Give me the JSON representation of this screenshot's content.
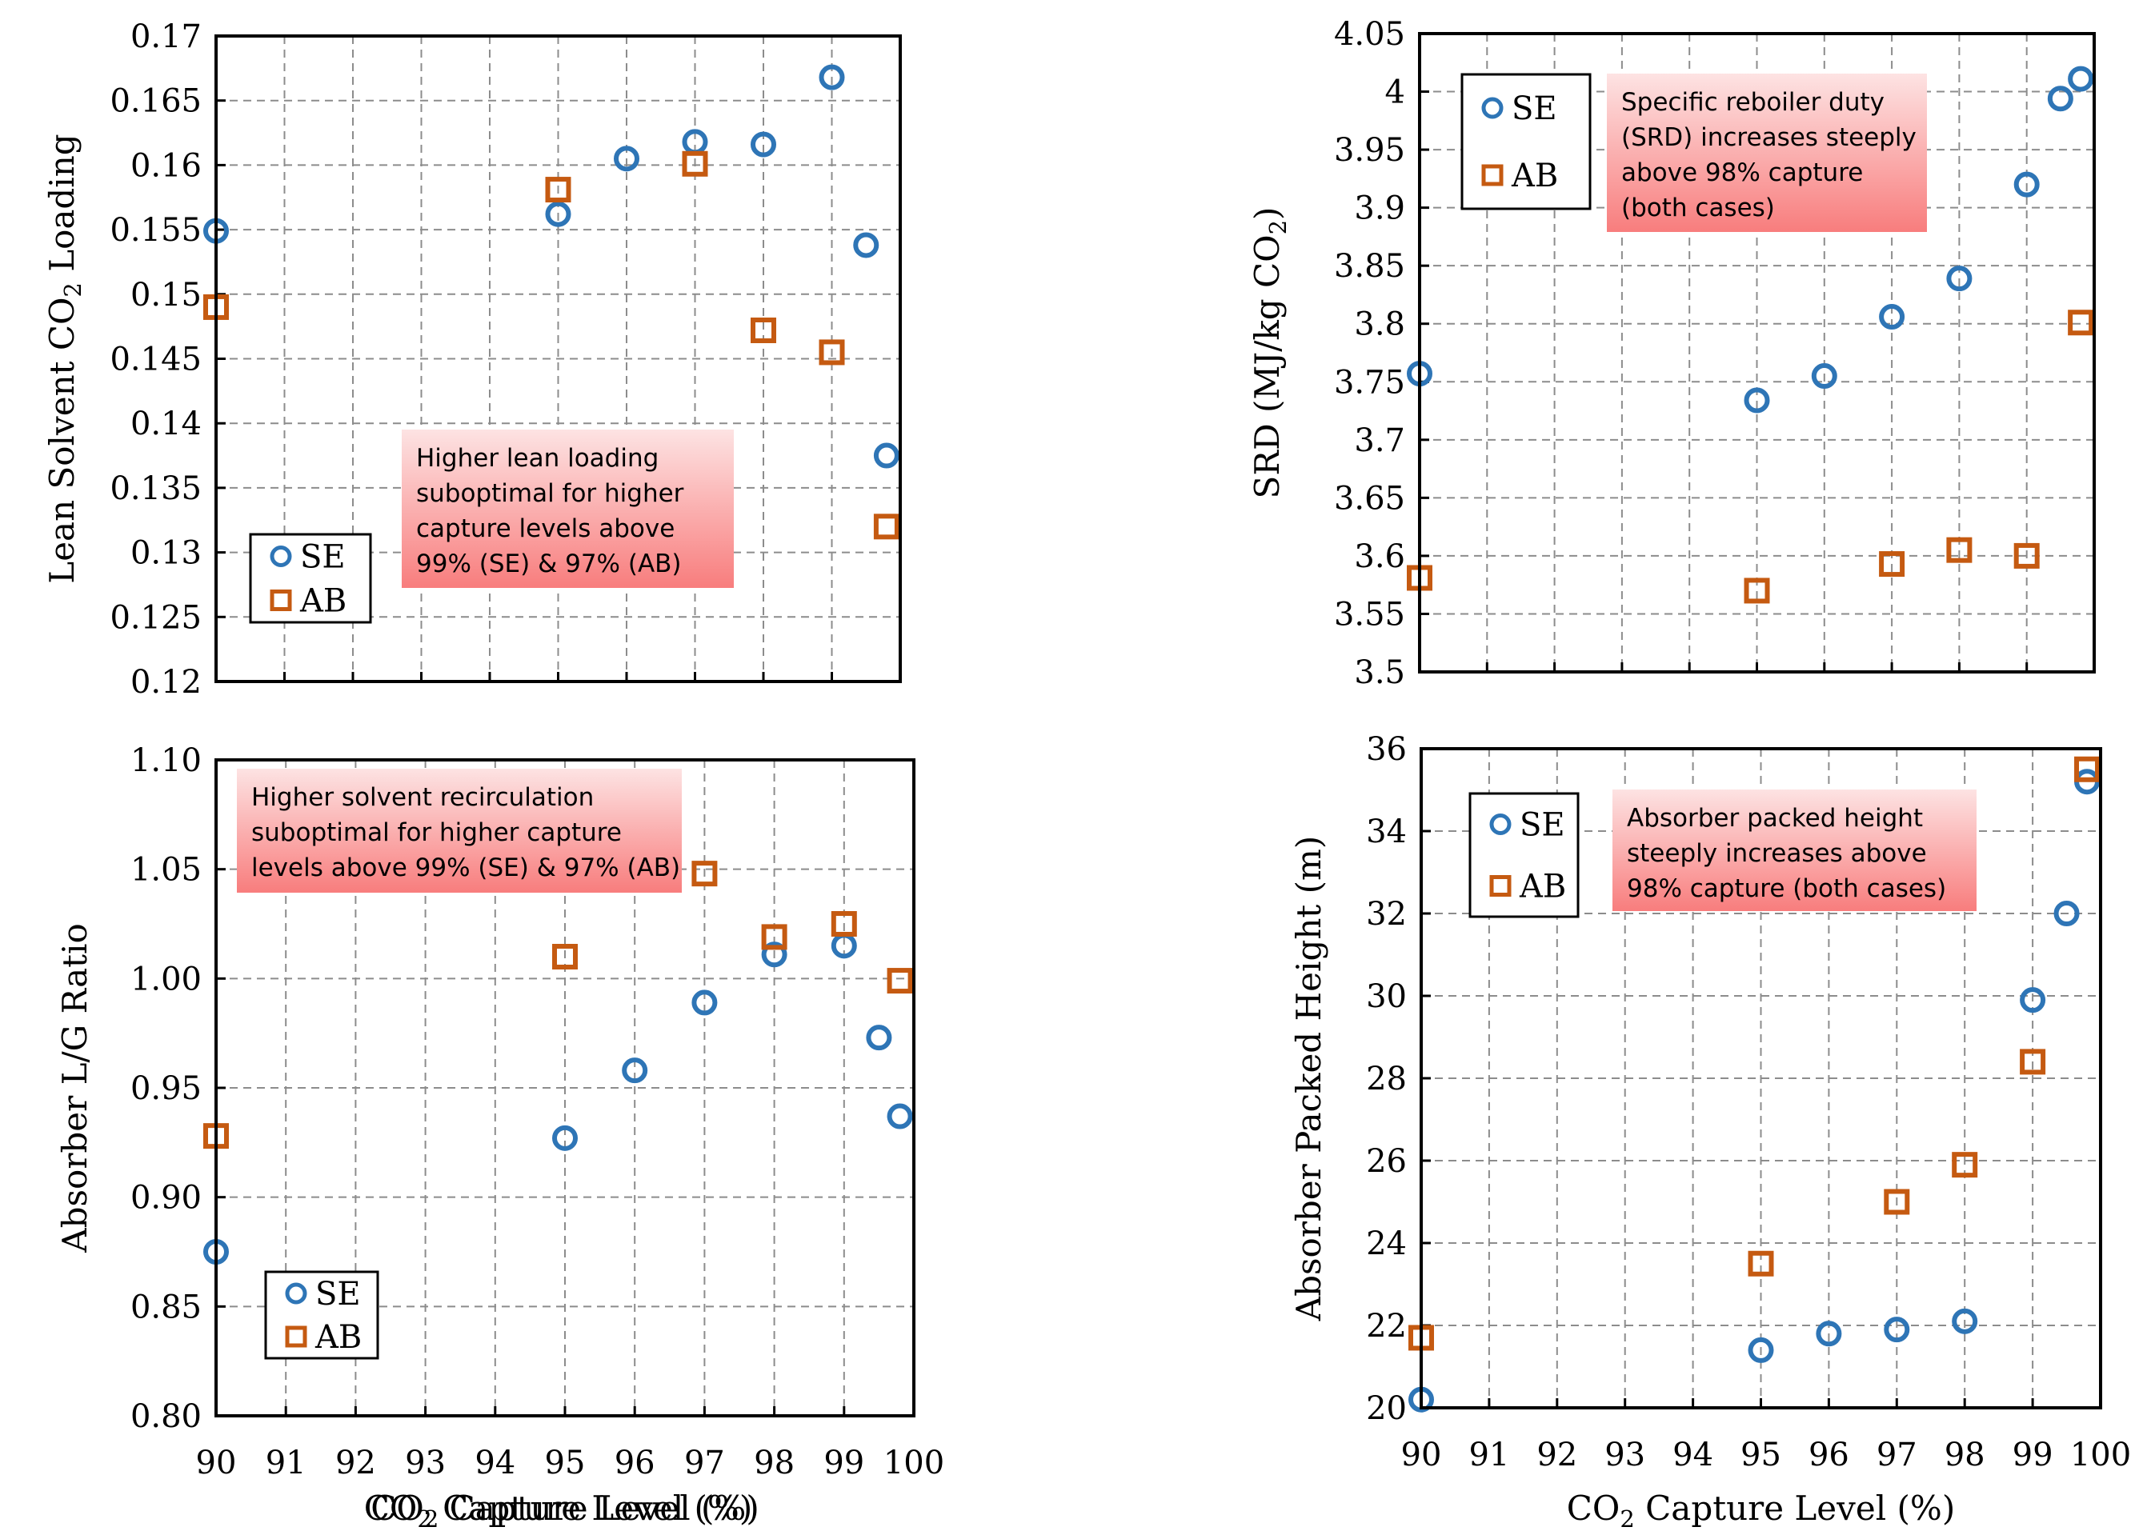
{
  "colors": {
    "SE": "#2e75b6",
    "AB": "#c55a11",
    "annotation_top": "#fde3e3",
    "annotation_bottom": "#f87d7d",
    "grid": "#8c8c8c"
  },
  "chart_data": [
    {
      "id": "lean-loading",
      "type": "scatter",
      "xlabel": "CO₂ Capture Level (%)",
      "ylabel": "Lean Solvent CO₂ Loading",
      "xlim": [
        90,
        100
      ],
      "ylim": [
        0.12,
        0.17
      ],
      "xticks": [],
      "yticks": [
        "0.12",
        "0.125",
        "0.13",
        "0.135",
        "0.14",
        "0.145",
        "0.15",
        "0.155",
        "0.16",
        "0.165",
        "0.17"
      ],
      "grid": true,
      "legend": {
        "placement": "bottom-left",
        "entries": [
          "SE",
          "AB"
        ]
      },
      "annotation": [
        "Higher lean loading",
        "suboptimal for higher",
        "capture levels above",
        "99% (SE) & 97% (AB)"
      ],
      "series": [
        {
          "name": "SE",
          "marker": "circle",
          "x": [
            90,
            95,
            96,
            97,
            98,
            99,
            99.5,
            99.8
          ],
          "y": [
            0.1549,
            0.1562,
            0.1605,
            0.1618,
            0.1616,
            0.1668,
            0.1538,
            0.1375
          ]
        },
        {
          "name": "AB",
          "marker": "square",
          "x": [
            90,
            95,
            97,
            98,
            99,
            99.8
          ],
          "y": [
            0.149,
            0.1581,
            0.1601,
            0.1472,
            0.1455,
            0.132
          ]
        }
      ]
    },
    {
      "id": "srd",
      "type": "scatter",
      "xlabel": "",
      "ylabel": "SRD (MJ/kg CO₂)",
      "xlim": [
        90,
        100
      ],
      "ylim": [
        3.5,
        4.05
      ],
      "xticks": [],
      "yticks": [
        "3.5",
        "3.55",
        "3.6",
        "3.65",
        "3.7",
        "3.75",
        "3.8",
        "3.85",
        "3.9",
        "3.95",
        "4",
        "4.05"
      ],
      "grid": true,
      "legend": {
        "placement": "top-left",
        "entries": [
          "SE",
          "AB"
        ]
      },
      "annotation": [
        "Specific reboiler duty",
        "(SRD) increases steeply",
        "above 98% capture",
        "(both cases)"
      ],
      "series": [
        {
          "name": "SE",
          "marker": "circle",
          "x": [
            90,
            95,
            96,
            97,
            98,
            99,
            99.5,
            99.8
          ],
          "y": [
            3.757,
            3.734,
            3.755,
            3.806,
            3.839,
            3.92,
            3.994,
            4.011
          ]
        },
        {
          "name": "AB",
          "marker": "square",
          "x": [
            90,
            95,
            97,
            98,
            99,
            99.8
          ],
          "y": [
            3.581,
            3.57,
            3.593,
            3.605,
            3.6,
            3.801
          ]
        }
      ]
    },
    {
      "id": "lg-ratio",
      "type": "scatter",
      "xlabel": "CO₂ Capture Level (%)",
      "ylabel": "Absorber L/G Ratio",
      "xlim": [
        90,
        100
      ],
      "ylim": [
        0.8,
        1.1
      ],
      "xticks": [
        "90",
        "91",
        "92",
        "93",
        "94",
        "95",
        "96",
        "97",
        "98",
        "99",
        "100"
      ],
      "yticks": [
        "0.80",
        "0.85",
        "0.90",
        "0.95",
        "1.00",
        "1.05",
        "1.10"
      ],
      "grid": true,
      "legend": {
        "placement": "bottom-left",
        "entries": [
          "SE",
          "AB"
        ]
      },
      "annotation": [
        "Higher solvent recirculation",
        "suboptimal for higher capture",
        "levels above 99% (SE) & 97% (AB)"
      ],
      "series": [
        {
          "name": "SE",
          "marker": "circle",
          "x": [
            90,
            95,
            96,
            97,
            98,
            99,
            99.5,
            99.8
          ],
          "y": [
            0.875,
            0.927,
            0.958,
            0.989,
            1.011,
            1.015,
            0.973,
            0.937
          ]
        },
        {
          "name": "AB",
          "marker": "square",
          "x": [
            90,
            95,
            97,
            98,
            99,
            99.8
          ],
          "y": [
            0.928,
            1.01,
            1.048,
            1.019,
            1.025,
            0.999
          ]
        }
      ]
    },
    {
      "id": "packed-height",
      "type": "scatter",
      "xlabel": "CO₂ Capture Level (%)",
      "ylabel": "Absorber Packed Height (m)",
      "xlim": [
        90,
        100
      ],
      "ylim": [
        20,
        36
      ],
      "xticks": [
        "90",
        "91",
        "92",
        "93",
        "94",
        "95",
        "96",
        "97",
        "98",
        "99",
        "100"
      ],
      "yticks": [
        "20",
        "22",
        "24",
        "26",
        "28",
        "30",
        "32",
        "34",
        "36"
      ],
      "grid": true,
      "legend": {
        "placement": "top-left",
        "entries": [
          "SE",
          "AB"
        ]
      },
      "annotation": [
        "Absorber packed height",
        "steeply increases above",
        "98% capture (both cases)"
      ],
      "series": [
        {
          "name": "SE",
          "marker": "circle",
          "x": [
            90,
            95,
            96,
            97,
            98,
            99,
            99.5,
            99.8
          ],
          "y": [
            20.2,
            21.4,
            21.8,
            21.9,
            22.1,
            29.9,
            32.0,
            35.2
          ]
        },
        {
          "name": "AB",
          "marker": "square",
          "x": [
            90,
            95,
            97,
            98,
            99,
            99.8
          ],
          "y": [
            21.7,
            23.5,
            25.0,
            25.9,
            28.4,
            35.5
          ]
        }
      ]
    }
  ]
}
